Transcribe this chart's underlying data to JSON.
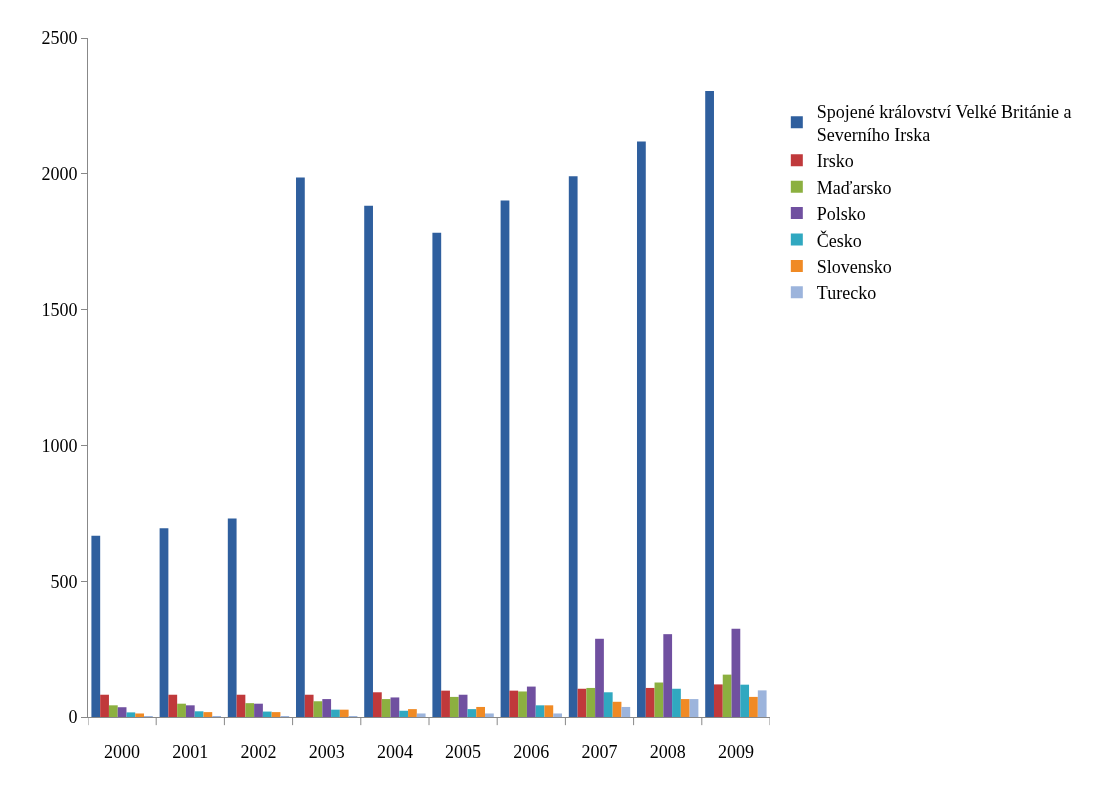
{
  "chart_data": {
    "type": "bar",
    "categories": [
      "2000",
      "2001",
      "2002",
      "2003",
      "2004",
      "2005",
      "2006",
      "2007",
      "2008",
      "2009"
    ],
    "series": [
      {
        "name": "Spojené království Velké Británie a Severního Irska",
        "color": "#2f5f9e",
        "values": [
          667,
          695,
          731,
          1986,
          1882,
          1783,
          1902,
          1991,
          2119,
          2305
        ]
      },
      {
        "name": "Irsko",
        "color": "#c0393b",
        "values": [
          82,
          82,
          82,
          82,
          91,
          97,
          97,
          104,
          107,
          120
        ]
      },
      {
        "name": "Maďarsko",
        "color": "#8cb040",
        "values": [
          43,
          49,
          51,
          58,
          66,
          74,
          94,
          107,
          127,
          156
        ]
      },
      {
        "name": "Polsko",
        "color": "#7050a0",
        "values": [
          36,
          43,
          49,
          66,
          72,
          82,
          112,
          288,
          305,
          325
        ]
      },
      {
        "name": "Česko",
        "color": "#30a8c0",
        "values": [
          17,
          21,
          20,
          27,
          23,
          29,
          43,
          91,
          104,
          119
        ]
      },
      {
        "name": "Slovensko",
        "color": "#f08a24",
        "values": [
          13,
          18,
          18,
          27,
          29,
          37,
          43,
          56,
          66,
          74
        ]
      },
      {
        "name": "Turecko",
        "color": "#9cb4dc",
        "values": [
          2,
          3,
          2,
          2,
          13,
          13,
          13,
          37,
          66,
          98
        ]
      }
    ],
    "ylim": [
      0,
      2500
    ],
    "yticks": [
      0,
      500,
      1000,
      1500,
      2000,
      2500
    ],
    "legend": "right"
  }
}
